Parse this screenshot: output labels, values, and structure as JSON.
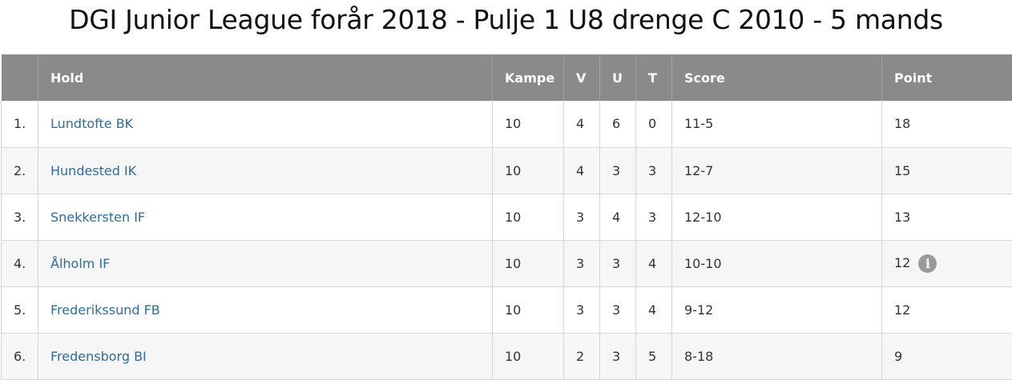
{
  "title": "DGI Junior League forår 2018 - Pulje 1 U8 drenge C 2010 - 5 mands",
  "table": {
    "headers": {
      "rank": "",
      "team": "Hold",
      "played": "Kampe",
      "won": "V",
      "drawn": "U",
      "lost": "T",
      "score": "Score",
      "points": "Point"
    },
    "rows": [
      {
        "rank": "1.",
        "team": "Lundtofte BK",
        "played": "10",
        "won": "4",
        "drawn": "6",
        "lost": "0",
        "score": "11-5",
        "points": "18",
        "info": false
      },
      {
        "rank": "2.",
        "team": "Hundested IK",
        "played": "10",
        "won": "4",
        "drawn": "3",
        "lost": "3",
        "score": "12-7",
        "points": "15",
        "info": false
      },
      {
        "rank": "3.",
        "team": "Snekkersten IF",
        "played": "10",
        "won": "3",
        "drawn": "4",
        "lost": "3",
        "score": "12-10",
        "points": "13",
        "info": false
      },
      {
        "rank": "4.",
        "team": "Ålholm IF",
        "played": "10",
        "won": "3",
        "drawn": "3",
        "lost": "4",
        "score": "10-10",
        "points": "12",
        "info": true
      },
      {
        "rank": "5.",
        "team": "Frederikssund FB",
        "played": "10",
        "won": "3",
        "drawn": "3",
        "lost": "4",
        "score": "9-12",
        "points": "12",
        "info": false
      },
      {
        "rank": "6.",
        "team": "Fredensborg BI",
        "played": "10",
        "won": "2",
        "drawn": "3",
        "lost": "5",
        "score": "8-18",
        "points": "9",
        "info": false
      }
    ],
    "info_icon": {
      "icon": "info-icon",
      "glyph": "i"
    }
  },
  "colors": {
    "header_bg": "#8a8a8a",
    "link": "#2f6e9c",
    "row_alt": "#f6f6f6"
  }
}
